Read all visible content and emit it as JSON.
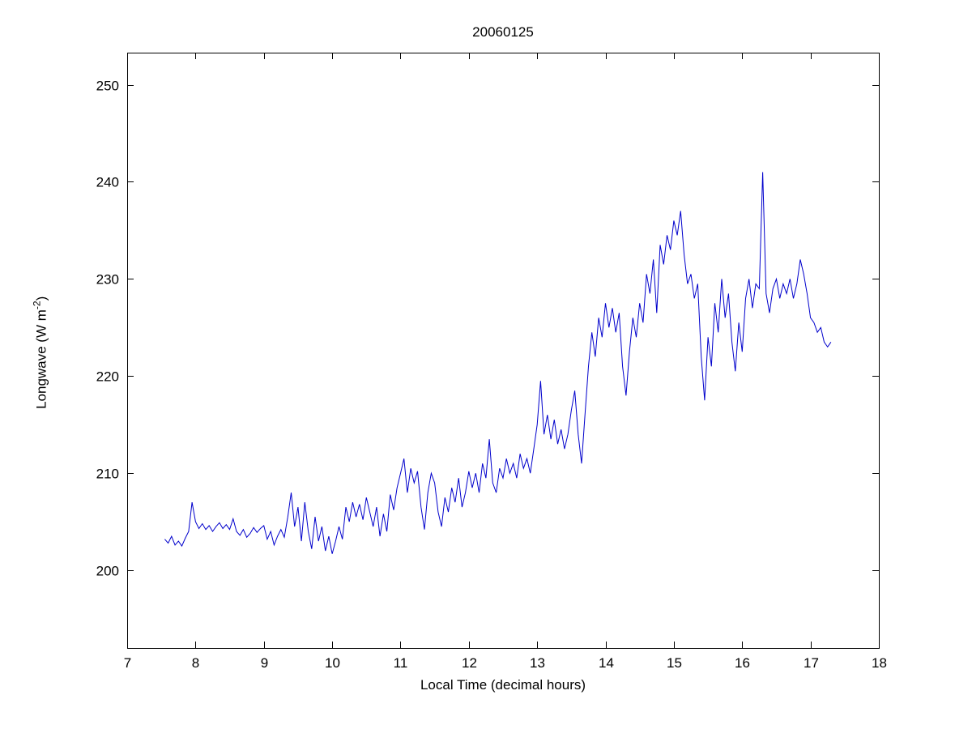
{
  "figure": {
    "background": "#ffffff",
    "title": "20060125",
    "xlabel": "Local Time (decimal hours)",
    "ylabel_prefix": "Longwave (W m",
    "ylabel_sup": "-2",
    "ylabel_suffix": ")"
  },
  "chart_data": {
    "type": "line",
    "title": "20060125",
    "xlabel": "Local Time (decimal hours)",
    "ylabel": "Longwave (W m^-2)",
    "xlim": [
      7,
      18
    ],
    "ylim": [
      192.0,
      253.3
    ],
    "xticks": [
      7,
      8,
      9,
      10,
      11,
      12,
      13,
      14,
      15,
      16,
      17,
      18
    ],
    "yticks": [
      200,
      210,
      220,
      230,
      240,
      250
    ],
    "grid": false,
    "legend": "none",
    "line_color": "#0000cc",
    "axis_color": "#000000",
    "points": [
      [
        7.55,
        203.2
      ],
      [
        7.6,
        202.8
      ],
      [
        7.65,
        203.5
      ],
      [
        7.7,
        202.6
      ],
      [
        7.75,
        203.0
      ],
      [
        7.8,
        202.5
      ],
      [
        7.85,
        203.3
      ],
      [
        7.9,
        204.0
      ],
      [
        7.95,
        207.0
      ],
      [
        8.0,
        205.0
      ],
      [
        8.05,
        204.3
      ],
      [
        8.1,
        204.8
      ],
      [
        8.15,
        204.2
      ],
      [
        8.2,
        204.6
      ],
      [
        8.25,
        204.0
      ],
      [
        8.3,
        204.5
      ],
      [
        8.35,
        204.9
      ],
      [
        8.4,
        204.3
      ],
      [
        8.45,
        204.7
      ],
      [
        8.5,
        204.2
      ],
      [
        8.55,
        205.3
      ],
      [
        8.6,
        204.0
      ],
      [
        8.65,
        203.6
      ],
      [
        8.7,
        204.2
      ],
      [
        8.75,
        203.4
      ],
      [
        8.8,
        203.8
      ],
      [
        8.85,
        204.4
      ],
      [
        8.9,
        203.9
      ],
      [
        8.95,
        204.3
      ],
      [
        9.0,
        204.6
      ],
      [
        9.05,
        203.2
      ],
      [
        9.1,
        204.0
      ],
      [
        9.15,
        202.6
      ],
      [
        9.2,
        203.5
      ],
      [
        9.25,
        204.2
      ],
      [
        9.3,
        203.4
      ],
      [
        9.35,
        205.5
      ],
      [
        9.4,
        208.0
      ],
      [
        9.45,
        204.5
      ],
      [
        9.5,
        206.5
      ],
      [
        9.55,
        203.0
      ],
      [
        9.6,
        207.0
      ],
      [
        9.65,
        204.0
      ],
      [
        9.7,
        202.2
      ],
      [
        9.75,
        205.5
      ],
      [
        9.8,
        203.0
      ],
      [
        9.85,
        204.5
      ],
      [
        9.9,
        202.0
      ],
      [
        9.95,
        203.5
      ],
      [
        10.0,
        201.7
      ],
      [
        10.05,
        203.0
      ],
      [
        10.1,
        204.5
      ],
      [
        10.15,
        203.2
      ],
      [
        10.2,
        206.5
      ],
      [
        10.25,
        205.0
      ],
      [
        10.3,
        207.0
      ],
      [
        10.35,
        205.5
      ],
      [
        10.4,
        206.8
      ],
      [
        10.45,
        205.2
      ],
      [
        10.5,
        207.5
      ],
      [
        10.55,
        206.0
      ],
      [
        10.6,
        204.5
      ],
      [
        10.65,
        206.5
      ],
      [
        10.7,
        203.5
      ],
      [
        10.75,
        205.8
      ],
      [
        10.8,
        204.0
      ],
      [
        10.85,
        207.8
      ],
      [
        10.9,
        206.2
      ],
      [
        10.95,
        208.5
      ],
      [
        11.0,
        210.0
      ],
      [
        11.05,
        211.5
      ],
      [
        11.1,
        208.0
      ],
      [
        11.15,
        210.5
      ],
      [
        11.2,
        209.0
      ],
      [
        11.25,
        210.2
      ],
      [
        11.3,
        206.5
      ],
      [
        11.35,
        204.2
      ],
      [
        11.4,
        208.0
      ],
      [
        11.45,
        210.0
      ],
      [
        11.5,
        209.0
      ],
      [
        11.55,
        206.0
      ],
      [
        11.6,
        204.5
      ],
      [
        11.65,
        207.5
      ],
      [
        11.7,
        206.0
      ],
      [
        11.75,
        208.5
      ],
      [
        11.8,
        207.0
      ],
      [
        11.85,
        209.5
      ],
      [
        11.9,
        206.5
      ],
      [
        11.95,
        208.0
      ],
      [
        12.0,
        210.2
      ],
      [
        12.05,
        208.5
      ],
      [
        12.1,
        210.0
      ],
      [
        12.15,
        208.0
      ],
      [
        12.2,
        211.0
      ],
      [
        12.25,
        209.5
      ],
      [
        12.3,
        213.5
      ],
      [
        12.35,
        209.0
      ],
      [
        12.4,
        208.0
      ],
      [
        12.45,
        210.5
      ],
      [
        12.5,
        209.5
      ],
      [
        12.55,
        211.5
      ],
      [
        12.6,
        210.0
      ],
      [
        12.65,
        211.0
      ],
      [
        12.7,
        209.5
      ],
      [
        12.75,
        212.0
      ],
      [
        12.8,
        210.5
      ],
      [
        12.85,
        211.5
      ],
      [
        12.9,
        210.0
      ],
      [
        12.95,
        212.5
      ],
      [
        13.0,
        215.0
      ],
      [
        13.05,
        219.5
      ],
      [
        13.1,
        214.0
      ],
      [
        13.15,
        216.0
      ],
      [
        13.2,
        213.5
      ],
      [
        13.25,
        215.5
      ],
      [
        13.3,
        213.0
      ],
      [
        13.35,
        214.5
      ],
      [
        13.4,
        212.5
      ],
      [
        13.45,
        214.0
      ],
      [
        13.5,
        216.5
      ],
      [
        13.55,
        218.5
      ],
      [
        13.6,
        214.0
      ],
      [
        13.65,
        211.0
      ],
      [
        13.7,
        216.0
      ],
      [
        13.75,
        221.0
      ],
      [
        13.8,
        224.5
      ],
      [
        13.85,
        222.0
      ],
      [
        13.9,
        226.0
      ],
      [
        13.95,
        224.0
      ],
      [
        14.0,
        227.5
      ],
      [
        14.05,
        225.0
      ],
      [
        14.1,
        227.0
      ],
      [
        14.15,
        224.5
      ],
      [
        14.2,
        226.5
      ],
      [
        14.25,
        221.0
      ],
      [
        14.3,
        218.0
      ],
      [
        14.35,
        222.5
      ],
      [
        14.4,
        226.0
      ],
      [
        14.45,
        224.0
      ],
      [
        14.5,
        227.5
      ],
      [
        14.55,
        225.5
      ],
      [
        14.6,
        230.5
      ],
      [
        14.65,
        228.5
      ],
      [
        14.7,
        232.0
      ],
      [
        14.75,
        226.5
      ],
      [
        14.8,
        233.5
      ],
      [
        14.85,
        231.5
      ],
      [
        14.9,
        234.5
      ],
      [
        14.95,
        233.0
      ],
      [
        15.0,
        236.0
      ],
      [
        15.05,
        234.5
      ],
      [
        15.1,
        237.0
      ],
      [
        15.15,
        232.5
      ],
      [
        15.2,
        229.5
      ],
      [
        15.25,
        230.5
      ],
      [
        15.3,
        228.0
      ],
      [
        15.35,
        229.5
      ],
      [
        15.4,
        222.0
      ],
      [
        15.45,
        217.5
      ],
      [
        15.5,
        224.0
      ],
      [
        15.55,
        221.0
      ],
      [
        15.6,
        227.5
      ],
      [
        15.65,
        224.5
      ],
      [
        15.7,
        230.0
      ],
      [
        15.75,
        226.0
      ],
      [
        15.8,
        228.5
      ],
      [
        15.85,
        223.5
      ],
      [
        15.9,
        220.5
      ],
      [
        15.95,
        225.5
      ],
      [
        16.0,
        222.5
      ],
      [
        16.05,
        228.0
      ],
      [
        16.1,
        230.0
      ],
      [
        16.15,
        227.0
      ],
      [
        16.2,
        229.5
      ],
      [
        16.25,
        229.0
      ],
      [
        16.3,
        241.0
      ],
      [
        16.35,
        228.5
      ],
      [
        16.4,
        226.5
      ],
      [
        16.45,
        229.0
      ],
      [
        16.5,
        230.0
      ],
      [
        16.55,
        228.0
      ],
      [
        16.6,
        229.5
      ],
      [
        16.65,
        228.5
      ],
      [
        16.7,
        230.0
      ],
      [
        16.75,
        228.0
      ],
      [
        16.8,
        229.5
      ],
      [
        16.85,
        232.0
      ],
      [
        16.9,
        230.5
      ],
      [
        16.95,
        228.5
      ],
      [
        17.0,
        226.0
      ],
      [
        17.05,
        225.5
      ],
      [
        17.1,
        224.5
      ],
      [
        17.15,
        225.0
      ],
      [
        17.2,
        223.5
      ],
      [
        17.25,
        223.0
      ],
      [
        17.3,
        223.5
      ]
    ]
  }
}
